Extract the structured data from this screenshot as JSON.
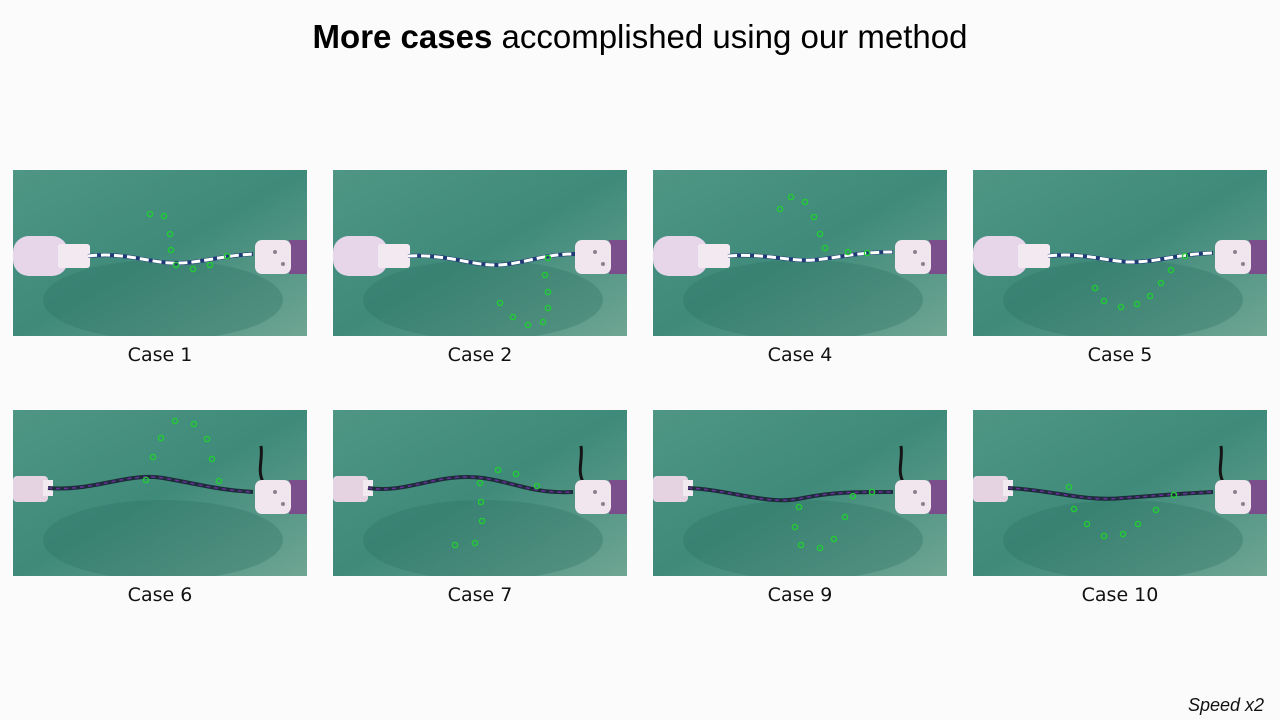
{
  "header": {
    "title_bold": "More cases",
    "title_rest": " accomplished using our method"
  },
  "cases": [
    {
      "label": "Case 1",
      "cable": "white",
      "shape": "small-arc-down"
    },
    {
      "label": "Case 2",
      "cable": "white",
      "shape": "loop-low-right"
    },
    {
      "label": "Case 4",
      "cable": "white",
      "shape": "loop-high-center"
    },
    {
      "label": "Case 5",
      "cable": "white",
      "shape": "arc-down-right"
    },
    {
      "label": "Case 6",
      "cable": "dark",
      "shape": "loop-high-left"
    },
    {
      "label": "Case 7",
      "cable": "dark",
      "shape": "s-curve"
    },
    {
      "label": "Case 9",
      "cable": "dark",
      "shape": "loop-low-center"
    },
    {
      "label": "Case 10",
      "cable": "dark",
      "shape": "arc-down-center"
    }
  ],
  "footer": {
    "speed": "Speed x2"
  },
  "colors": {
    "table": "#3f8a7a",
    "marker": "#22cc33"
  }
}
